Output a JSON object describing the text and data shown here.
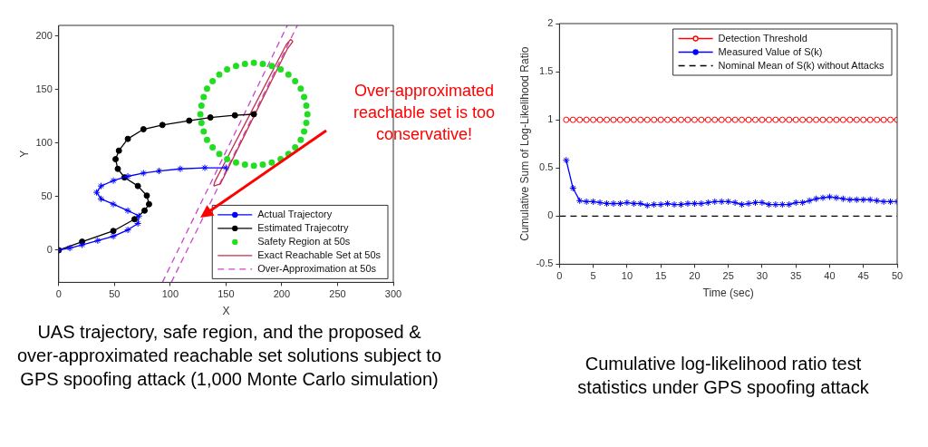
{
  "chart_data": [
    {
      "type": "line",
      "xlabel": "X",
      "ylabel": "Y",
      "xlim": [
        0,
        300
      ],
      "ylim": [
        -30,
        210
      ],
      "xticks": [
        0,
        50,
        100,
        150,
        200,
        250,
        300
      ],
      "yticks": [
        0,
        50,
        100,
        150,
        200
      ],
      "legend": "bottom right",
      "series": [
        {
          "name": "Actual Trajectory",
          "type": "line",
          "color": "#0000ff",
          "marker": "cross",
          "x": [
            0,
            10,
            21,
            35,
            49,
            62,
            71,
            72,
            62,
            49,
            38,
            34,
            38,
            49,
            62,
            76,
            90,
            109,
            131,
            150
          ],
          "values": [
            0,
            2,
            5,
            9,
            13,
            19,
            25,
            32,
            37,
            43,
            48,
            54,
            60,
            65,
            69,
            72,
            74,
            76,
            77,
            77
          ]
        },
        {
          "name": "Estimated Trajecotry",
          "type": "line",
          "color": "#000000",
          "marker": "circle",
          "x": [
            0,
            21,
            49,
            68,
            77,
            81,
            79,
            71,
            59,
            53,
            51,
            54,
            62,
            76,
            93,
            117,
            136,
            158,
            175
          ],
          "values": [
            0,
            8,
            18,
            29,
            37,
            43,
            51,
            60,
            68,
            76,
            85,
            93,
            104,
            113,
            117,
            121,
            124,
            126,
            127
          ]
        },
        {
          "name": "Safety Region at 50s",
          "type": "scatter",
          "color": "#22dd22",
          "marker": "circle",
          "x": [
            223,
            222,
            220,
            217,
            212,
            206,
            199,
            191,
            183,
            175,
            167,
            159,
            151,
            144,
            138,
            133,
            130,
            128,
            127,
            128,
            130,
            133,
            138,
            144,
            151,
            159,
            167,
            175,
            183,
            191,
            199,
            206,
            212,
            217,
            220,
            222
          ],
          "values": [
            127,
            135,
            143,
            151,
            158,
            164,
            169,
            172,
            174,
            175,
            174,
            172,
            169,
            164,
            158,
            151,
            143,
            135,
            127,
            119,
            111,
            103,
            96,
            90,
            85,
            82,
            80,
            79,
            80,
            82,
            85,
            90,
            96,
            103,
            111,
            119
          ]
        },
        {
          "name": "Exact Reachable Set at 50s",
          "type": "line",
          "color": "#c0304a",
          "marker": "none",
          "x": [
            139,
            145,
            175,
            205,
            210
          ],
          "values": [
            60,
            62,
            125,
            188,
            195
          ]
        },
        {
          "type": "line",
          "color": "#c0304a",
          "marker": "none",
          "x": [
            139,
            140,
            172,
            204,
            208,
            210
          ],
          "values": [
            60,
            64,
            128,
            192,
            197,
            195
          ]
        },
        {
          "name": "Over-Approximation at 50s",
          "type": "line",
          "color": "#cc44cc",
          "marker": "none",
          "line_style": "dashed",
          "x": [
            93,
            205
          ],
          "values": [
            -30,
            210
          ]
        },
        {
          "type": "line",
          "color": "#cc44cc",
          "marker": "none",
          "line_style": "dashed",
          "x": [
            101,
            214
          ],
          "values": [
            -30,
            210
          ]
        }
      ],
      "annotations": [
        "Over-approximated reachable set is too conservative!",
        "UAS trajectory, safe region, and the proposed & over-approximated reachable set solutions subject to GPS spoofing attack (1,000 Monte Carlo simulation)"
      ]
    },
    {
      "type": "line",
      "xlabel": "Time (sec)",
      "ylabel": "Cumulative Sum of Log-Likelihood Ratio",
      "xlim": [
        0,
        50
      ],
      "ylim": [
        -0.5,
        2
      ],
      "xticks": [
        0,
        5,
        10,
        15,
        20,
        25,
        30,
        35,
        40,
        45,
        50
      ],
      "yticks": [
        -0.5,
        0,
        0.5,
        1,
        1.5,
        2
      ],
      "legend": "top right",
      "x": [
        1,
        2,
        3,
        4,
        5,
        6,
        7,
        8,
        9,
        10,
        11,
        12,
        13,
        14,
        15,
        16,
        17,
        18,
        19,
        20,
        21,
        22,
        23,
        24,
        25,
        26,
        27,
        28,
        29,
        30,
        31,
        32,
        33,
        34,
        35,
        36,
        37,
        38,
        39,
        40,
        41,
        42,
        43,
        44,
        45,
        46,
        47,
        48,
        49,
        50
      ],
      "series": [
        {
          "name": "Detection Threshold",
          "type": "line",
          "color": "#ff0000",
          "marker": "circle",
          "values": [
            1,
            1,
            1,
            1,
            1,
            1,
            1,
            1,
            1,
            1,
            1,
            1,
            1,
            1,
            1,
            1,
            1,
            1,
            1,
            1,
            1,
            1,
            1,
            1,
            1,
            1,
            1,
            1,
            1,
            1,
            1,
            1,
            1,
            1,
            1,
            1,
            1,
            1,
            1,
            1,
            1,
            1,
            1,
            1,
            1,
            1,
            1,
            1,
            1,
            1
          ]
        },
        {
          "name": "Measured Value of S(k)",
          "type": "line",
          "color": "#0000ff",
          "marker": "cross",
          "values": [
            0.58,
            0.29,
            0.16,
            0.15,
            0.15,
            0.14,
            0.13,
            0.13,
            0.13,
            0.14,
            0.13,
            0.13,
            0.11,
            0.12,
            0.12,
            0.13,
            0.12,
            0.12,
            0.13,
            0.13,
            0.13,
            0.14,
            0.15,
            0.15,
            0.15,
            0.14,
            0.12,
            0.13,
            0.14,
            0.14,
            0.12,
            0.12,
            0.12,
            0.12,
            0.14,
            0.14,
            0.16,
            0.18,
            0.19,
            0.2,
            0.19,
            0.18,
            0.17,
            0.17,
            0.17,
            0.17,
            0.16,
            0.15,
            0.15,
            0.15
          ]
        },
        {
          "name": "Nominal Mean of S(k) without Attacks",
          "type": "line",
          "color": "#000000",
          "marker": "none",
          "line_style": "dashed",
          "x": [
            0,
            50
          ],
          "values": [
            0,
            0
          ]
        }
      ],
      "annotations": [
        "Cumulative log-likelihood ratio test statistics under GPS spoofing attack"
      ]
    }
  ]
}
